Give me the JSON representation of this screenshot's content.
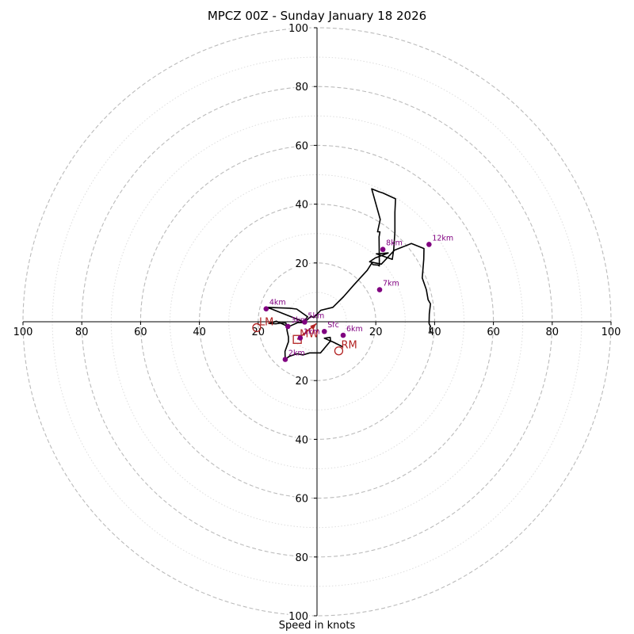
{
  "chart_data": {
    "type": "hodograph",
    "title": "MPCZ 00Z - Sunday January 18 2026",
    "xlabel": "Speed in knots",
    "max_speed": 100,
    "ring_step_major": 20,
    "ring_step_minor": 10,
    "tick_labels": [
      "20",
      "40",
      "60",
      "80",
      "100"
    ],
    "colors": {
      "trace": "#000000",
      "height_points": "#800080",
      "motion": "#b22222",
      "major_grid": "#bbbbbb",
      "minor_grid": "#dddddd"
    },
    "trace": [
      [
        8.9,
        -8.6
      ],
      [
        5.5,
        -6.9
      ],
      [
        2.5,
        -5.6
      ],
      [
        4.5,
        -5.3
      ],
      [
        4.6,
        -6.5
      ],
      [
        1.2,
        -10.6
      ],
      [
        -2.5,
        -10.6
      ],
      [
        -4.8,
        -11.3
      ],
      [
        -6.8,
        -10.9
      ],
      [
        -9.5,
        -11.8
      ],
      [
        -10.8,
        -12.8
      ],
      [
        -10.9,
        -10.1
      ],
      [
        -10.1,
        -7.9
      ],
      [
        -9.7,
        -6.8
      ],
      [
        -9.7,
        -5.2
      ],
      [
        -10.2,
        -3.0
      ],
      [
        -10.3,
        -1.6
      ],
      [
        -10.6,
        -0.4
      ],
      [
        -12.0,
        -0.4
      ],
      [
        -14.0,
        -0.7
      ],
      [
        -16.4,
        -0.6
      ],
      [
        -16.3,
        -0.6
      ],
      [
        -13.8,
        0.2
      ],
      [
        -9.7,
        -1.7
      ],
      [
        -6.6,
        -0.3
      ],
      [
        -4.7,
        -0.3
      ],
      [
        -3.2,
        1.7
      ],
      [
        -6.9,
        4.3
      ],
      [
        -9.2,
        4.6
      ],
      [
        -17.3,
        4.9
      ],
      [
        -15.9,
        4.5
      ],
      [
        -4.2,
        -0.1
      ],
      [
        -2.0,
        1.9
      ],
      [
        -1.1,
        1.4
      ],
      [
        1.3,
        3.9
      ],
      [
        5.4,
        4.9
      ],
      [
        9.0,
        8.5
      ],
      [
        12.6,
        12.6
      ],
      [
        17.1,
        17.5
      ],
      [
        18.6,
        19.9
      ],
      [
        19.1,
        19.4
      ],
      [
        20.7,
        19.3
      ],
      [
        21.2,
        19.0
      ],
      [
        21.1,
        28.9
      ],
      [
        21.4,
        30.5
      ],
      [
        21.4,
        30.6
      ],
      [
        20.6,
        30.6
      ],
      [
        21.5,
        34.8
      ],
      [
        18.6,
        45.2
      ],
      [
        21.1,
        44.2
      ],
      [
        22.4,
        43.8
      ],
      [
        26.7,
        41.8
      ],
      [
        26.5,
        37.2
      ],
      [
        26.5,
        30.5
      ],
      [
        26.1,
        24.6
      ],
      [
        25.6,
        21.2
      ],
      [
        20.2,
        23.1
      ],
      [
        24.2,
        23.4
      ],
      [
        19.8,
        21.7
      ],
      [
        17.9,
        20.4
      ],
      [
        21.9,
        19.6
      ],
      [
        26.3,
        24.3
      ],
      [
        32.1,
        26.6
      ],
      [
        36.4,
        24.9
      ],
      [
        36.3,
        21.2
      ],
      [
        35.8,
        14.9
      ],
      [
        37.2,
        10.9
      ],
      [
        37.8,
        7.5
      ],
      [
        38.6,
        6.1
      ],
      [
        38.2,
        2.7
      ],
      [
        38.1,
        -0.6
      ],
      [
        38.6,
        -1.6
      ],
      [
        38.4,
        -2.0
      ],
      [
        38.4,
        -3.1
      ],
      [
        38.9,
        -3.6
      ]
    ],
    "height_markers": [
      {
        "label": "Sfc",
        "u": 2.5,
        "v": -3.3
      },
      {
        "label": "1km",
        "u": -5.7,
        "v": -5.5
      },
      {
        "label": "2km",
        "u": -10.8,
        "v": -12.8
      },
      {
        "label": "3km",
        "u": -9.9,
        "v": -1.6
      },
      {
        "label": "4km",
        "u": -17.3,
        "v": 4.4
      },
      {
        "label": "5km",
        "u": -4.2,
        "v": -0.1
      },
      {
        "label": "6km",
        "u": 8.9,
        "v": -4.6
      },
      {
        "label": "7km",
        "u": 21.3,
        "v": 10.9
      },
      {
        "label": "8km",
        "u": 22.4,
        "v": 24.6
      },
      {
        "label": "12km",
        "u": 38.1,
        "v": 26.3
      }
    ],
    "storm_motion": [
      {
        "label": "LM",
        "u": -20.5,
        "v": -2.0
      },
      {
        "label": "MW",
        "u": -6.7,
        "v": -6.0
      },
      {
        "label": "RM",
        "u": 7.4,
        "v": -9.9
      }
    ]
  }
}
